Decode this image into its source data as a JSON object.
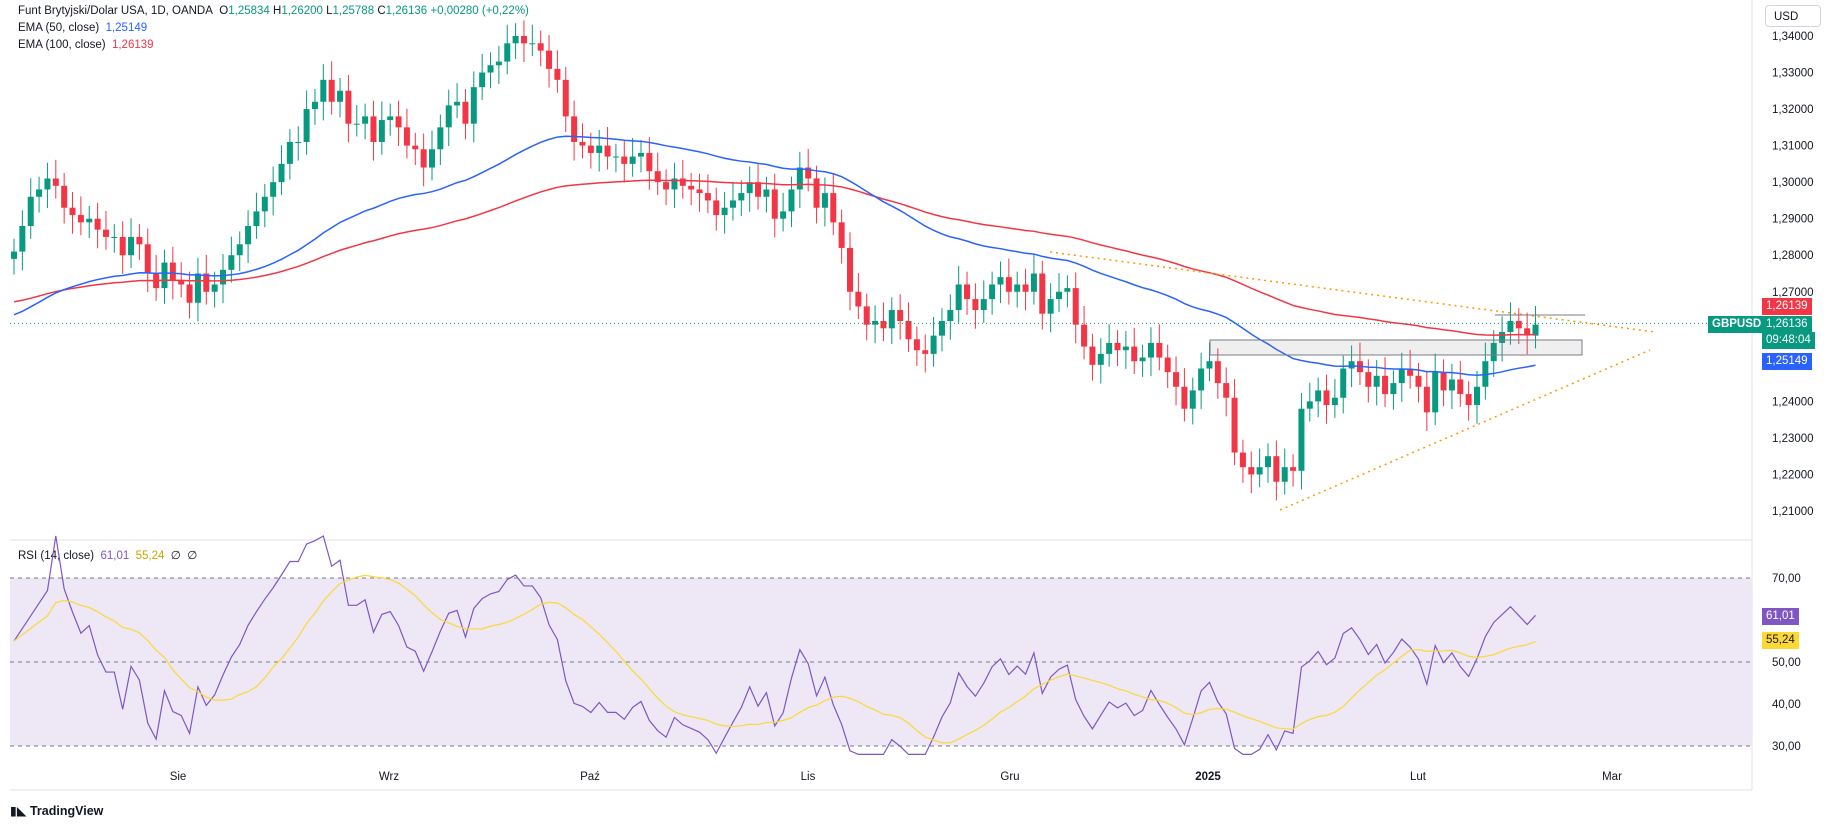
{
  "header": {
    "symbol_title": "Funt Brytyjski/Dolar USA, 1D, OANDA",
    "o_label": "O",
    "o_value": "1,25834",
    "h_label": "H",
    "h_value": "1,26200",
    "l_label": "L",
    "l_value": "1,25788",
    "c_label": "C",
    "c_value": "1,26136",
    "change": "+0,00280 (+0,22%)",
    "ema50_label": "EMA (50, close)",
    "ema50_value": "1,25149",
    "ema100_label": "EMA (100, close)",
    "ema100_value": "1,26139"
  },
  "rsi_legend": {
    "label": "RSI (14, close)",
    "rsi_value": "61,01",
    "ma_value": "55,24",
    "n1": "∅",
    "n2": "∅"
  },
  "currency_button": "USD",
  "price_tags": {
    "ema100": "1,26139",
    "symbol": "GBPUSD",
    "last": "1,26136",
    "countdown": "09:48:04",
    "ema50": "1,25149",
    "rsi": "61,01",
    "rsi_ma": "55,24"
  },
  "x_axis": [
    "Sie",
    "Wrz",
    "Paź",
    "Lis",
    "Gru",
    "2025",
    "Lut",
    "Mar"
  ],
  "branding": "TradingView",
  "colors": {
    "up": "#089981",
    "down": "#f23645",
    "ema50": "#2962ff",
    "ema100": "#f23645",
    "rsi": "#7e57c2",
    "rsi_ma": "#fdd835",
    "trendline": "#ff9800",
    "rsi_band": "#ede7f6"
  },
  "chart_data": [
    {
      "type": "candlestick",
      "title": "Funt Brytyjski/Dolar USA, 1D, OANDA",
      "y_ticks": [
        "1,34000",
        "1,33000",
        "1,32000",
        "1,31000",
        "1,30000",
        "1,29000",
        "1,28000",
        "1,27000",
        "1,24000",
        "1,23000",
        "1,22000",
        "1,21000"
      ],
      "ylim": [
        1.205,
        1.346
      ],
      "closes": [
        1.281,
        1.288,
        1.296,
        1.298,
        1.301,
        1.299,
        1.293,
        1.291,
        1.289,
        1.29,
        1.287,
        1.285,
        1.285,
        1.28,
        1.285,
        1.283,
        1.275,
        1.271,
        1.278,
        1.273,
        1.272,
        1.267,
        1.275,
        1.27,
        1.272,
        1.276,
        1.28,
        1.283,
        1.288,
        1.292,
        1.296,
        1.3,
        1.305,
        1.311,
        1.311,
        1.32,
        1.322,
        1.328,
        1.322,
        1.325,
        1.316,
        1.316,
        1.318,
        1.311,
        1.317,
        1.318,
        1.315,
        1.31,
        1.309,
        1.304,
        1.309,
        1.315,
        1.321,
        1.322,
        1.316,
        1.326,
        1.33,
        1.332,
        1.333,
        1.338,
        1.34,
        1.338,
        1.338,
        1.336,
        1.331,
        1.328,
        1.318,
        1.311,
        1.31,
        1.308,
        1.31,
        1.307,
        1.307,
        1.305,
        1.307,
        1.308,
        1.303,
        1.3,
        1.298,
        1.301,
        1.299,
        1.298,
        1.297,
        1.295,
        1.291,
        1.293,
        1.295,
        1.297,
        1.3,
        1.296,
        1.298,
        1.29,
        1.292,
        1.298,
        1.304,
        1.301,
        1.293,
        1.297,
        1.289,
        1.282,
        1.27,
        1.266,
        1.261,
        1.262,
        1.26,
        1.265,
        1.262,
        1.257,
        1.254,
        1.253,
        1.258,
        1.262,
        1.265,
        1.272,
        1.268,
        1.265,
        1.268,
        1.272,
        1.274,
        1.27,
        1.272,
        1.27,
        1.275,
        1.264,
        1.268,
        1.27,
        1.271,
        1.261,
        1.255,
        1.25,
        1.253,
        1.256,
        1.254,
        1.255,
        1.251,
        1.252,
        1.256,
        1.252,
        1.248,
        1.244,
        1.238,
        1.243,
        1.249,
        1.251,
        1.245,
        1.241,
        1.226,
        1.222,
        1.22,
        1.222,
        1.225,
        1.218,
        1.222,
        1.221,
        1.238,
        1.24,
        1.243,
        1.239,
        1.241,
        1.249,
        1.251,
        1.248,
        1.244,
        1.247,
        1.242,
        1.245,
        1.249,
        1.247,
        1.244,
        1.237,
        1.248,
        1.243,
        1.246,
        1.242,
        1.239,
        1.244,
        1.251,
        1.256,
        1.259,
        1.262,
        1.26,
        1.258,
        1.261
      ]
    },
    {
      "type": "line",
      "title": "RSI (14, close)",
      "y_ticks": [
        "70,00",
        "50,00",
        "40,00",
        "30,00"
      ],
      "ylim": [
        28,
        80
      ],
      "band": [
        30,
        70
      ],
      "midline": 50
    }
  ]
}
